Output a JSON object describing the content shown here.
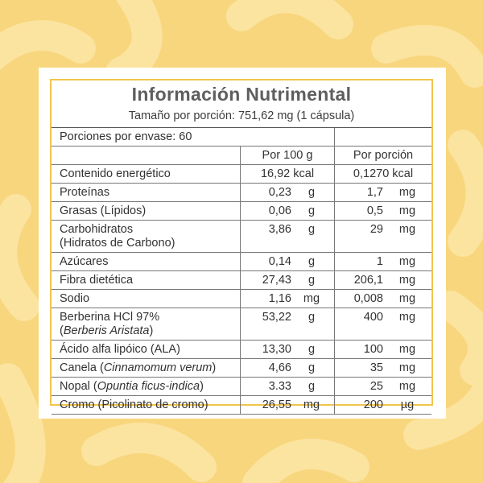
{
  "label": {
    "title": "Información Nutrimental",
    "subtitle": "Tamaño por porción: 751,62 mg (1 cápsula)",
    "servings": "Porciones por envase: 60",
    "col_header_1": "Por 100 g",
    "col_header_2": "Por porción",
    "rows": [
      {
        "label": "Contenido energético",
        "v1": "16,92 kcal",
        "v2": "0,1270 kcal"
      },
      {
        "label": "Proteínas",
        "v1": "0,23",
        "u1": "g",
        "v2": "1,7",
        "u2": "mg"
      },
      {
        "label": "Grasas (Lípidos)",
        "v1": "0,06",
        "u1": "g",
        "v2": "0,5",
        "u2": "mg"
      },
      {
        "label": "Carbohidratos",
        "label2": "(Hidratos de Carbono)",
        "v1": "3,86",
        "u1": "g",
        "v2": "29",
        "u2": "mg"
      },
      {
        "label": "Azúcares",
        "v1": "0,14",
        "u1": "g",
        "v2": "1",
        "u2": "mg"
      },
      {
        "label": "Fibra dietética",
        "v1": "27,43",
        "u1": "g",
        "v2": "206,1",
        "u2": "mg"
      },
      {
        "label": "Sodio",
        "v1": "1,16",
        "u1": "mg",
        "v2": "0,008",
        "u2": "mg"
      },
      {
        "label": "Berberina HCl 97%",
        "label2_pre": "(",
        "label2_it": "Berberis Aristata",
        "label2_post": ")",
        "v1": "53,22",
        "u1": "g",
        "v2": "400",
        "u2": "mg"
      },
      {
        "label": "Ácido alfa lipóico (ALA)",
        "v1": "13,30",
        "u1": "g",
        "v2": "100",
        "u2": "mg"
      },
      {
        "label_pre": "Canela (",
        "label_it": "Cinnamomum verum",
        "label_post": ")",
        "v1": "4,66",
        "u1": "g",
        "v2": "35",
        "u2": "mg"
      },
      {
        "label_pre": "Nopal (",
        "label_it": "Opuntia ficus-indica",
        "label_post": ")",
        "v1": "3.33",
        "u1": "g",
        "v2": "25",
        "u2": "mg"
      },
      {
        "label": "Cromo (Picolinato de cromo)",
        "v1": "26,55",
        "u1": "mg",
        "v2": "200",
        "u2": "µg"
      }
    ]
  },
  "colors": {
    "background": "#f8d67d",
    "pattern": "#fbe6a8",
    "border": "#f0c44c"
  }
}
